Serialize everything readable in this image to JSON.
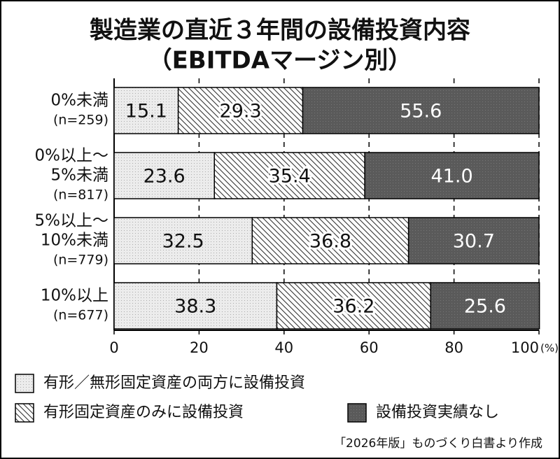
{
  "chart_data": {
    "type": "stacked-barh",
    "title": "製造業の直近３年間の設備投資内容",
    "subtitle": "（EBITDAマージン別）",
    "categories": [
      [
        "0%未満",
        "(n=259)"
      ],
      [
        "0%以上～",
        "5%未満",
        "(n=817)"
      ],
      [
        "5%以上～",
        "10%未満",
        "(n=779)"
      ],
      [
        "10%以上",
        "(n=677)"
      ]
    ],
    "series": [
      {
        "name": "有形／無形固定資産の両方に設備投資",
        "color": "#ececec",
        "pattern": "dots",
        "label_color": "#111111",
        "values": [
          15.1,
          23.6,
          32.5,
          38.3
        ],
        "value_labels": [
          "15.1",
          "23.6",
          "32.5",
          "38.3"
        ]
      },
      {
        "name": "有形固定資産のみに設備投資",
        "color": "#ffffff",
        "pattern": "hatch",
        "label_color": "#111111",
        "values": [
          29.3,
          35.4,
          36.8,
          36.2
        ],
        "value_labels": [
          "29.3",
          "35.4",
          "36.8",
          "36.2"
        ]
      },
      {
        "name": "設備投資実績なし",
        "color": "#5a5a5a",
        "pattern": "dots",
        "label_color": "#ffffff",
        "values": [
          55.6,
          41.0,
          30.7,
          25.6
        ],
        "value_labels": [
          "55.6",
          "41.0",
          "30.7",
          "25.6"
        ]
      }
    ],
    "xlim": [
      0,
      100
    ],
    "xticks": [
      0,
      20,
      40,
      60,
      80,
      100
    ],
    "x_unit": "(%)",
    "grid": true,
    "source": "「2026年版」ものづくり白書より作成"
  }
}
